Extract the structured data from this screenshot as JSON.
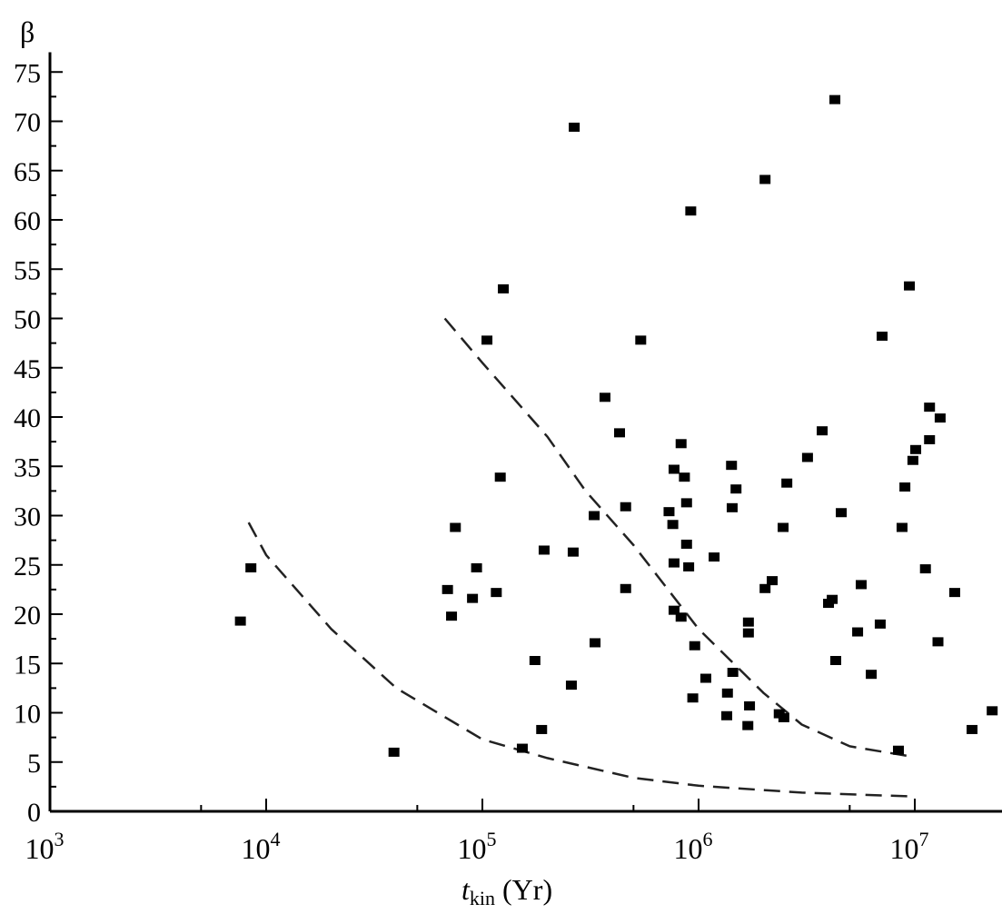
{
  "chart_data": {
    "type": "scatter",
    "title": "",
    "ylabel": "β",
    "xlabel_main": "t",
    "xlabel_sub": "kin",
    "xlabel_unit": "(Yr)",
    "x_scale": "log",
    "xlim": [
      1000,
      25000000
    ],
    "ylim": [
      0,
      77
    ],
    "grid": false,
    "x_ticks": [
      {
        "value": 1000,
        "base": "10",
        "exp": "3"
      },
      {
        "value": 10000,
        "base": "10",
        "exp": "4"
      },
      {
        "value": 100000,
        "base": "10",
        "exp": "5"
      },
      {
        "value": 1000000,
        "base": "10",
        "exp": "6"
      },
      {
        "value": 10000000,
        "base": "10",
        "exp": "7"
      }
    ],
    "y_ticks": [
      0,
      5,
      10,
      15,
      20,
      25,
      30,
      35,
      40,
      45,
      50,
      55,
      60,
      65,
      70,
      75
    ],
    "marker": {
      "shape": "square",
      "color": "#000000"
    },
    "points": [
      [
        7600,
        19.3
      ],
      [
        8500,
        24.7
      ],
      [
        39000,
        6.0
      ],
      [
        69000,
        22.5
      ],
      [
        72000,
        19.8
      ],
      [
        75000,
        28.8
      ],
      [
        90000,
        21.6
      ],
      [
        94000,
        24.7
      ],
      [
        105000,
        47.8
      ],
      [
        116000,
        22.2
      ],
      [
        121000,
        33.9
      ],
      [
        125000,
        53.0
      ],
      [
        153000,
        6.4
      ],
      [
        175000,
        15.3
      ],
      [
        188000,
        8.3
      ],
      [
        193000,
        26.5
      ],
      [
        258000,
        12.8
      ],
      [
        263000,
        26.3
      ],
      [
        266000,
        69.4
      ],
      [
        329000,
        30.0
      ],
      [
        332000,
        17.1
      ],
      [
        369000,
        42.0
      ],
      [
        431000,
        38.4
      ],
      [
        460000,
        30.9
      ],
      [
        460000,
        22.6
      ],
      [
        540000,
        47.8
      ],
      [
        730000,
        30.4
      ],
      [
        760000,
        29.1
      ],
      [
        770000,
        34.7
      ],
      [
        770000,
        25.2
      ],
      [
        770000,
        20.4
      ],
      [
        830000,
        37.3
      ],
      [
        830000,
        19.7
      ],
      [
        860000,
        33.9
      ],
      [
        880000,
        31.3
      ],
      [
        880000,
        27.1
      ],
      [
        900000,
        24.8
      ],
      [
        960000,
        16.8
      ],
      [
        920000,
        60.9
      ],
      [
        940000,
        11.5
      ],
      [
        1080000,
        13.5
      ],
      [
        1180000,
        25.8
      ],
      [
        1350000,
        9.7
      ],
      [
        1360000,
        12.0
      ],
      [
        1420000,
        35.1
      ],
      [
        1430000,
        30.8
      ],
      [
        1440000,
        14.1
      ],
      [
        1490000,
        32.7
      ],
      [
        1690000,
        8.7
      ],
      [
        1700000,
        19.2
      ],
      [
        1700000,
        18.1
      ],
      [
        1720000,
        10.7
      ],
      [
        2030000,
        64.1
      ],
      [
        2030000,
        22.6
      ],
      [
        2190000,
        23.4
      ],
      [
        2360000,
        9.9
      ],
      [
        2480000,
        9.5
      ],
      [
        2460000,
        28.8
      ],
      [
        2560000,
        33.3
      ],
      [
        3190000,
        35.9
      ],
      [
        3730000,
        38.6
      ],
      [
        3990000,
        21.1
      ],
      [
        4150000,
        21.5
      ],
      [
        4270000,
        72.2
      ],
      [
        4310000,
        15.3
      ],
      [
        4570000,
        30.3
      ],
      [
        5440000,
        18.2
      ],
      [
        5650000,
        23.0
      ],
      [
        6290000,
        13.9
      ],
      [
        6920000,
        19.0
      ],
      [
        7060000,
        48.2
      ],
      [
        8400000,
        6.2
      ],
      [
        8730000,
        28.8
      ],
      [
        9000000,
        32.9
      ],
      [
        9440000,
        53.3
      ],
      [
        9800000,
        35.6
      ],
      [
        10100000,
        36.7
      ],
      [
        11200000,
        24.6
      ],
      [
        11700000,
        41.0
      ],
      [
        11700000,
        37.7
      ],
      [
        12800000,
        17.2
      ],
      [
        13100000,
        39.9
      ],
      [
        15300000,
        22.2
      ],
      [
        18400000,
        8.3
      ],
      [
        22800000,
        10.2
      ]
    ],
    "curves": [
      {
        "style": "dashed",
        "points": [
          [
            8300,
            29.3
          ],
          [
            10000,
            26.0
          ],
          [
            20000,
            18.5
          ],
          [
            40000,
            12.5
          ],
          [
            100000,
            7.3
          ],
          [
            200000,
            5.4
          ],
          [
            500000,
            3.4
          ],
          [
            1000000,
            2.6
          ],
          [
            3000000,
            1.9
          ],
          [
            10000000,
            1.5
          ]
        ]
      },
      {
        "style": "dashed",
        "points": [
          [
            67000,
            50.0
          ],
          [
            100000,
            45.5
          ],
          [
            200000,
            38.0
          ],
          [
            300000,
            32.5
          ],
          [
            500000,
            27.0
          ],
          [
            1000000,
            18.5
          ],
          [
            2000000,
            12.0
          ],
          [
            3000000,
            8.8
          ],
          [
            5000000,
            6.6
          ],
          [
            10000000,
            5.5
          ]
        ]
      }
    ]
  }
}
